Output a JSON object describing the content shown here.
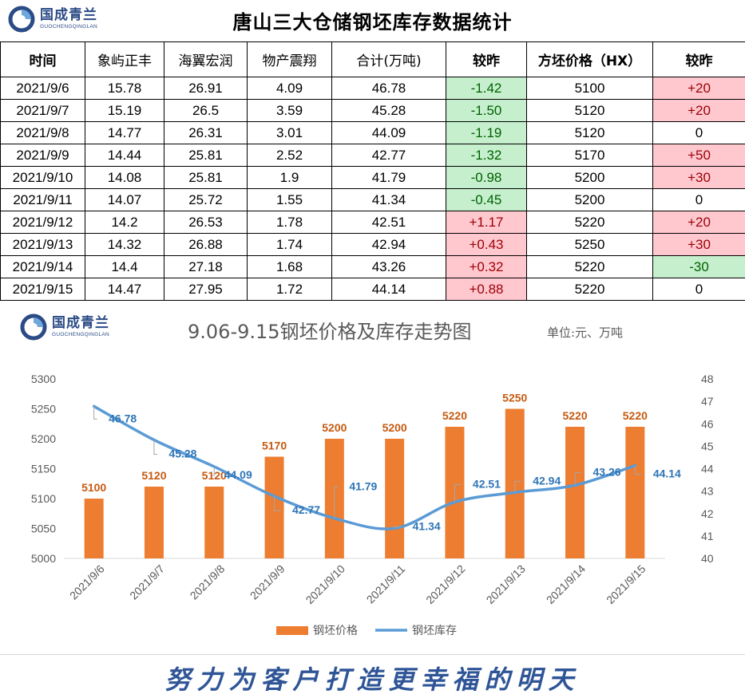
{
  "header": {
    "logo_cn": "国成青兰",
    "logo_en": "GUOCHENGQINGLAN",
    "title": "唐山三大仓储钢坯库存数据统计"
  },
  "table": {
    "columns": [
      "时间",
      "象屿正丰",
      "海翼宏润",
      "物产震翔",
      "合计(万吨)",
      "较昨",
      "方坯价格（HX）",
      "较昨"
    ],
    "rows": [
      [
        "2021/9/6",
        "15.78",
        "26.91",
        "4.09",
        "46.78",
        "-1.42",
        "5100",
        "+20"
      ],
      [
        "2021/9/7",
        "15.19",
        "26.5",
        "3.59",
        "45.28",
        "-1.50",
        "5120",
        "+20"
      ],
      [
        "2021/9/8",
        "14.77",
        "26.31",
        "3.01",
        "44.09",
        "-1.19",
        "5120",
        "0"
      ],
      [
        "2021/9/9",
        "14.44",
        "25.81",
        "2.52",
        "42.77",
        "-1.32",
        "5170",
        "+50"
      ],
      [
        "2021/9/10",
        "14.08",
        "25.81",
        "1.9",
        "41.79",
        "-0.98",
        "5200",
        "+30"
      ],
      [
        "2021/9/11",
        "14.07",
        "25.72",
        "1.55",
        "41.34",
        "-0.45",
        "5200",
        "0"
      ],
      [
        "2021/9/12",
        "14.2",
        "26.53",
        "1.78",
        "42.51",
        "+1.17",
        "5220",
        "+20"
      ],
      [
        "2021/9/13",
        "14.32",
        "26.88",
        "1.74",
        "42.94",
        "+0.43",
        "5250",
        "+30"
      ],
      [
        "2021/9/14",
        "14.4",
        "27.18",
        "1.68",
        "43.26",
        "+0.32",
        "5220",
        "-30"
      ],
      [
        "2021/9/15",
        "14.47",
        "27.95",
        "1.72",
        "44.14",
        "+0.88",
        "5220",
        "0"
      ]
    ]
  },
  "chart": {
    "logo_cn": "国成青兰",
    "logo_en": "GUOCHENGQINGLAN",
    "title": "9.06-9.15钢坯价格及库存走势图",
    "unit": "单位:元、万吨"
  },
  "chart_data": {
    "type": "bar",
    "title": "9.06-9.15钢坯价格及库存走势图",
    "categories": [
      "2021/9/6",
      "2021/9/7",
      "2021/9/8",
      "2021/9/9",
      "2021/9/10",
      "2021/9/11",
      "2021/9/12",
      "2021/9/13",
      "2021/9/14",
      "2021/9/15"
    ],
    "series": [
      {
        "name": "钢坯价格",
        "type": "bar",
        "axis": "left",
        "color": "#ed7d31",
        "values": [
          5100,
          5120,
          5120,
          5170,
          5200,
          5200,
          5220,
          5250,
          5220,
          5220
        ]
      },
      {
        "name": "钢坯库存",
        "type": "line",
        "axis": "right",
        "color": "#5b9bd5",
        "values": [
          46.78,
          45.28,
          44.09,
          42.77,
          41.79,
          41.34,
          42.51,
          42.94,
          43.26,
          44.14
        ]
      }
    ],
    "y_left": {
      "min": 5000,
      "max": 5300,
      "ticks": [
        5000,
        5050,
        5100,
        5150,
        5200,
        5250,
        5300
      ]
    },
    "y_right": {
      "min": 40,
      "max": 48,
      "ticks": [
        40,
        41,
        42,
        43,
        44,
        45,
        46,
        47,
        48
      ]
    },
    "legend": "bottom",
    "grid": false
  },
  "footer": {
    "slogan": "努力为客户打造更幸福的明天"
  },
  "colors": {
    "brand_blue": "#2b4b86",
    "bar": "#ed7d31",
    "line": "#5b9bd5",
    "positive_bg": "#ffc7ce",
    "negative_bg": "#c6efce"
  }
}
